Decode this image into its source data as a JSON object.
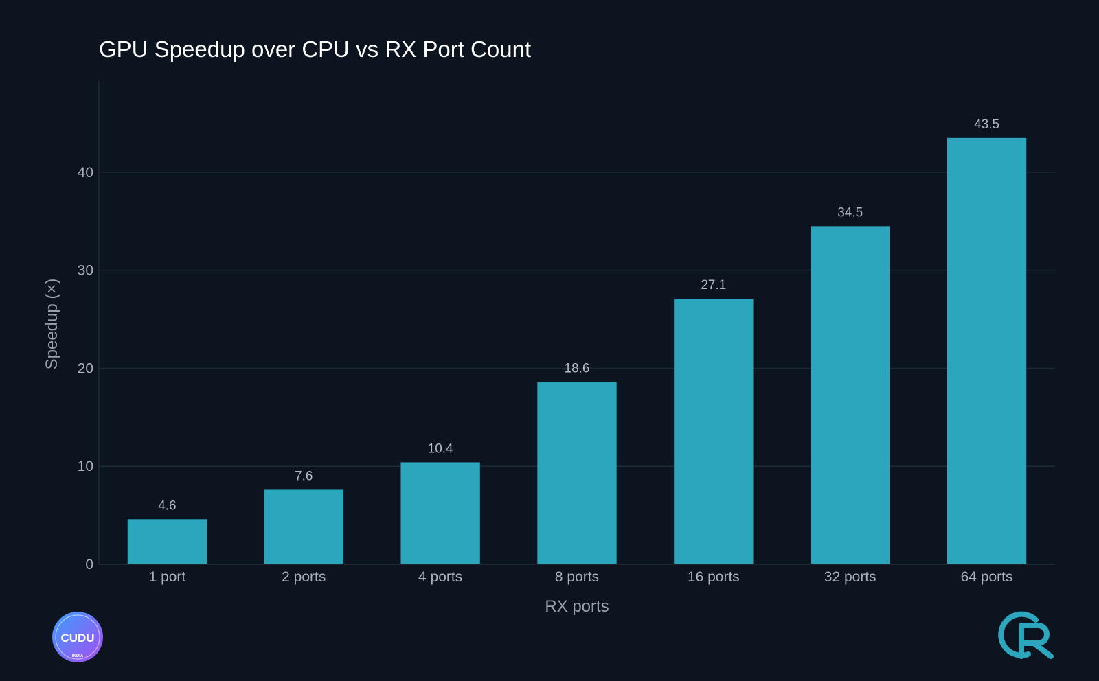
{
  "chart_data": {
    "type": "bar",
    "title": "GPU Speedup over CPU vs RX Port Count",
    "xlabel": "RX ports",
    "ylabel": "Speedup (×)",
    "categories": [
      "1 port",
      "2 ports",
      "4 ports",
      "8 ports",
      "16 ports",
      "32 ports",
      "64 ports"
    ],
    "values": [
      4.6,
      7.6,
      10.4,
      18.6,
      27.1,
      34.5,
      43.5
    ],
    "value_labels": [
      "4.6",
      "7.6",
      "10.4",
      "18.6",
      "27.1",
      "34.5",
      "43.5"
    ],
    "yticks": [
      0,
      10,
      20,
      30,
      40
    ],
    "ylim": [
      0,
      49.3
    ],
    "grid": true,
    "bar_color": "#2ba6bd"
  },
  "branding": {
    "left_logo": {
      "text": "CUDU",
      "subtext": "INDIA",
      "colors": [
        "#3aa0ff",
        "#a84cf0"
      ]
    },
    "right_logo": {
      "icon": "r-monogram-icon",
      "color": "#2ba6bd"
    }
  },
  "colors": {
    "background": "#0c1420",
    "bar": "#2ba6bd",
    "grid": "#1c2b36",
    "text": "#aab1bb",
    "title": "#ffffff"
  }
}
